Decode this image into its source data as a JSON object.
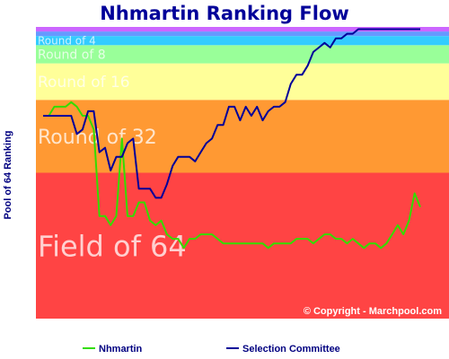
{
  "chart_data": {
    "type": "line",
    "title": "Nhmartin Ranking Flow",
    "ylabel": "Pool of 64 Ranking",
    "xlabel": "",
    "ylim": [
      64,
      1
    ],
    "copyright": "© Copyright - Marchpool.com",
    "bands": [
      {
        "label": "Field of 64",
        "from": 33,
        "to": 64,
        "color": "#ff4444"
      },
      {
        "label": "Round of 32",
        "from": 17,
        "to": 32,
        "color": "#ff9933"
      },
      {
        "label": "Round of 16",
        "from": 9,
        "to": 16,
        "color": "#ffff99"
      },
      {
        "label": "Round of 8",
        "from": 5,
        "to": 8,
        "color": "#99ff99"
      },
      {
        "label": "Round of 4",
        "from": 3,
        "to": 4,
        "color": "#33ccff"
      },
      {
        "label": "",
        "from": 2,
        "to": 2,
        "color": "#6699ff"
      },
      {
        "label": "",
        "from": 1,
        "to": 1,
        "color": "#cc66ff"
      }
    ],
    "series": [
      {
        "name": "Nhmartin",
        "color": "#33dd00",
        "values": [
          20,
          20,
          18,
          18,
          18,
          17,
          18,
          20,
          20,
          23,
          42,
          42,
          44,
          42,
          25,
          42,
          42,
          39,
          39,
          43,
          44,
          43,
          46,
          47,
          47,
          49,
          47,
          47,
          46,
          46,
          46,
          47,
          48,
          48,
          48,
          48,
          48,
          48,
          48,
          48,
          49,
          48,
          48,
          48,
          48,
          47,
          47,
          47,
          48,
          47,
          46,
          46,
          47,
          47,
          48,
          47,
          48,
          49,
          48,
          48,
          49,
          48,
          46,
          44,
          46,
          43,
          37,
          40
        ]
      },
      {
        "name": "Selection Committee",
        "color": "#000099",
        "values": [
          20,
          20,
          20,
          20,
          20,
          20,
          24,
          23,
          19,
          19,
          28,
          27,
          32,
          29,
          29,
          26,
          25,
          36,
          36,
          36,
          38,
          38,
          35,
          31,
          29,
          29,
          29,
          30,
          28,
          26,
          25,
          22,
          22,
          18,
          18,
          21,
          18,
          20,
          18,
          21,
          19,
          18,
          18,
          17,
          13,
          11,
          11,
          9,
          6,
          5,
          4,
          5,
          3,
          3,
          2,
          2,
          1,
          1,
          1,
          1,
          1,
          1,
          1,
          1,
          1,
          1,
          1,
          1
        ]
      }
    ]
  }
}
